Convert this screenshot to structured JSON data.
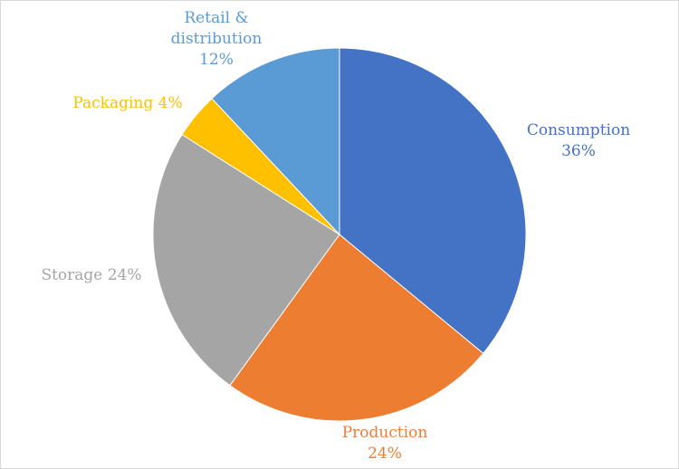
{
  "chart_data": {
    "type": "pie",
    "title": "",
    "start_angle_deg": 0,
    "direction": "clockwise",
    "legend": "none",
    "slices": [
      {
        "label": "Consumption",
        "value": 36,
        "value_label": "36%",
        "color": "#4472C4"
      },
      {
        "label": "Production",
        "value": 24,
        "value_label": "24%",
        "color": "#ED7D31"
      },
      {
        "label": "Storage",
        "value": 24,
        "value_label": "24%",
        "color": "#A5A5A5"
      },
      {
        "label": "Packaging",
        "value": 4,
        "value_label": "4%",
        "color": "#FFC000"
      },
      {
        "label": "Retail & distribution",
        "value": 12,
        "value_label": "12%",
        "color": "#5B9BD5"
      }
    ]
  }
}
